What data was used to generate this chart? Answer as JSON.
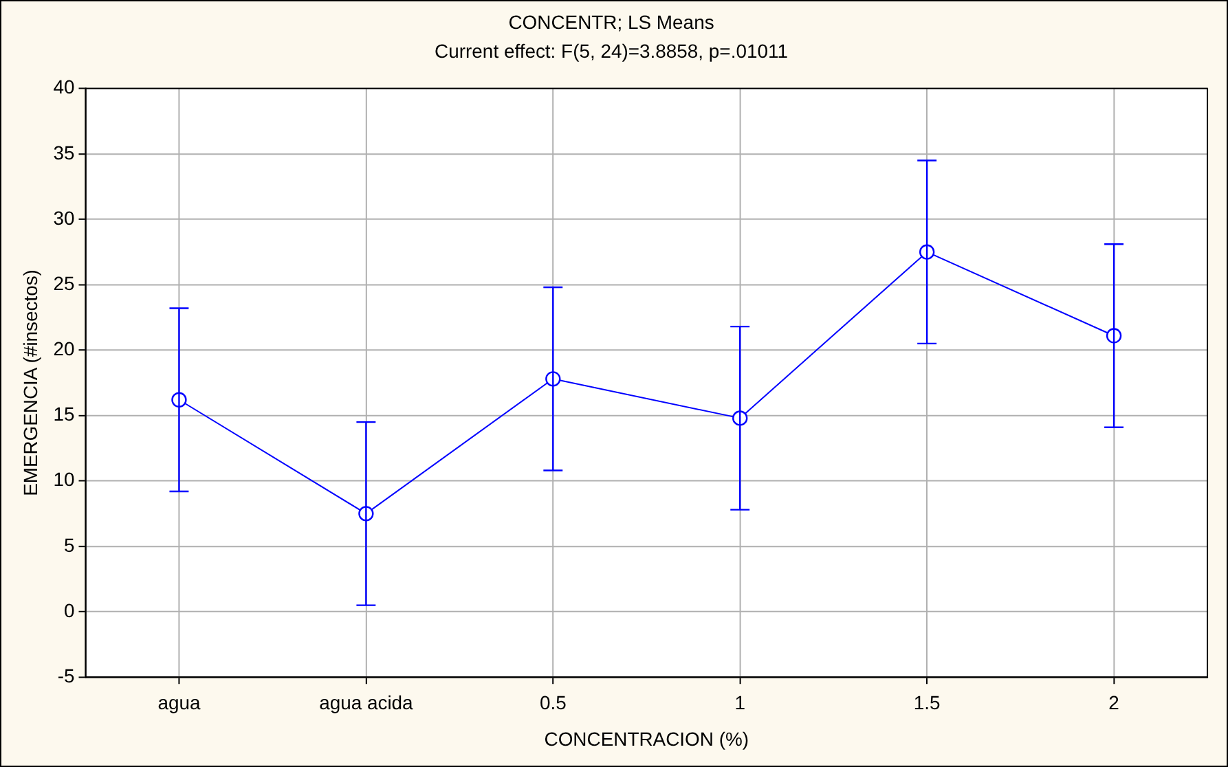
{
  "chart_data": {
    "type": "line",
    "title": "CONCENTR; LS Means",
    "subtitle": "Current effect: F(5, 24)=3.8858, p=.01011",
    "xlabel": "CONCENTRACION (%)",
    "ylabel": "EMERGENCIA (#insectos)",
    "categories": [
      "agua",
      "agua acida",
      "0.5",
      "1",
      "1.5",
      "2"
    ],
    "series": [
      {
        "color": "#0000ff",
        "values": [
          16.2,
          7.5,
          17.8,
          14.8,
          27.5,
          21.1
        ],
        "errors": [
          7.0,
          7.0,
          7.0,
          7.0,
          7.0,
          7.0
        ]
      }
    ],
    "ylim": [
      -5,
      40
    ],
    "yticks": [
      -5,
      0,
      5,
      10,
      15,
      20,
      25,
      30,
      35,
      40
    ],
    "grid": true,
    "legend": false,
    "marker": "circle",
    "line_style": "solid"
  }
}
